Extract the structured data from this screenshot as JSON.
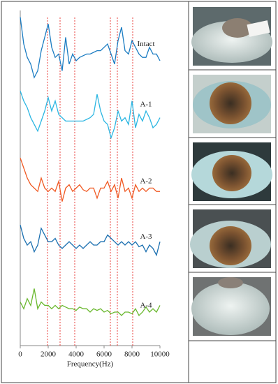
{
  "chart_data": {
    "type": "line",
    "xlabel": "Frequency(Hz)",
    "x": [
      0,
      250,
      500,
      750,
      1000,
      1250,
      1500,
      1750,
      2000,
      2250,
      2500,
      2750,
      3000,
      3250,
      3500,
      3750,
      4000,
      4250,
      4500,
      4750,
      5000,
      5250,
      5500,
      5750,
      6000,
      6250,
      6500,
      6750,
      7000,
      7250,
      7500,
      7750,
      8000,
      8250,
      8500,
      8750,
      9000,
      9250,
      9500,
      9750,
      10000
    ],
    "xlim": [
      0,
      10000
    ],
    "xticks": [
      0,
      2000,
      4000,
      6000,
      8000,
      10000
    ],
    "ylim": [
      0,
      100
    ],
    "reference_lines": {
      "x": [
        1950,
        2850,
        3900,
        6450,
        6950,
        8050
      ],
      "color": "#e8413c"
    },
    "series": [
      {
        "name": "Intact",
        "color": "#1b7cc2",
        "values": [
          98,
          90,
          86,
          84,
          80,
          82,
          88,
          92,
          96,
          89,
          86,
          87,
          82,
          92,
          84,
          87,
          85,
          86,
          86.5,
          87,
          87,
          87.5,
          88,
          88,
          89,
          90,
          87,
          84,
          91,
          95,
          88,
          87,
          91,
          89,
          87,
          86,
          86,
          89,
          87,
          87,
          85
        ]
      },
      {
        "name": "A-1",
        "color": "#2cb6e2",
        "values": [
          76,
          73,
          71,
          68,
          66,
          64,
          67,
          70,
          74,
          70,
          73,
          69,
          68,
          67,
          67,
          67,
          67,
          67,
          67,
          67.5,
          68,
          69,
          75,
          70,
          67,
          66,
          62,
          65,
          70,
          67,
          68,
          66,
          73,
          65,
          69,
          67,
          70,
          68,
          65,
          66,
          68
        ]
      },
      {
        "name": "A-2",
        "color": "#f05a24",
        "values": [
          56,
          53,
          50,
          48,
          47,
          46,
          50,
          47,
          46,
          47,
          46,
          49,
          43,
          47,
          48,
          46,
          47,
          48,
          46.5,
          46,
          47,
          47,
          44,
          47,
          47,
          49,
          46,
          48,
          44,
          50,
          46,
          47,
          44,
          48,
          46,
          47,
          46,
          47,
          47,
          46,
          46
        ]
      },
      {
        "name": "A-3",
        "color": "#1a6fb0",
        "values": [
          36,
          32,
          30,
          31,
          28,
          30,
          35,
          33,
          31,
          31,
          32,
          30,
          29,
          30,
          31,
          30,
          29,
          30,
          29,
          30,
          31,
          30,
          30,
          31,
          31,
          33,
          32,
          31,
          30,
          31,
          30,
          31,
          30,
          31,
          29.5,
          30,
          28,
          30,
          29,
          27,
          31
        ]
      },
      {
        "name": "A-4",
        "color": "#6ab82e",
        "values": [
          13,
          11,
          14,
          12,
          17,
          11,
          13,
          12,
          12,
          11,
          12,
          11,
          12,
          11.5,
          11,
          11,
          10.5,
          11.5,
          11,
          11,
          10,
          11,
          10.5,
          11,
          10,
          10.5,
          9.5,
          10,
          10,
          9,
          10,
          10,
          9.5,
          11,
          9,
          10,
          11.5,
          10,
          11,
          10,
          12
        ]
      }
    ]
  }
}
